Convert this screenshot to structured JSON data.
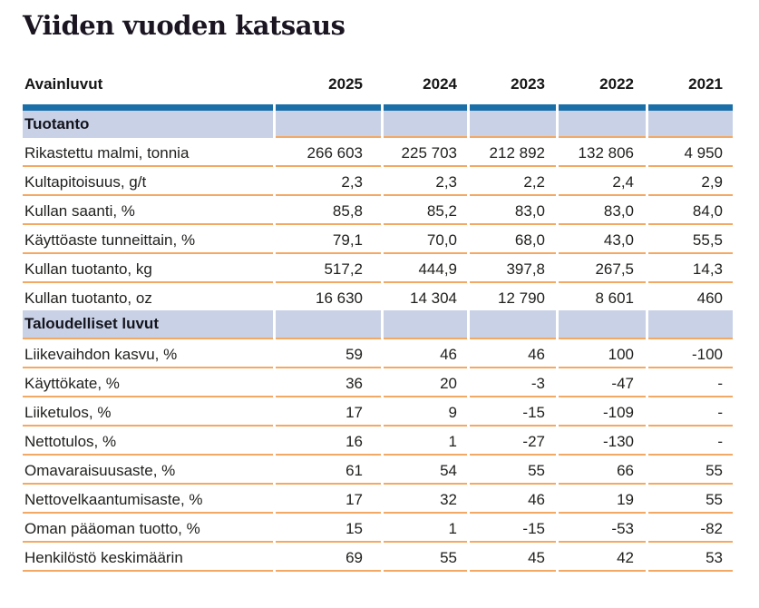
{
  "page": {
    "title": "Viiden vuoden katsaus"
  },
  "colors": {
    "header_bar": "#1b6fa8",
    "section_bg": "#c8d1e6",
    "divider": "#f3a964",
    "title_color": "#1b1522",
    "text_color": "#21211f"
  },
  "table": {
    "header": {
      "label": "Avainluvut",
      "years": [
        "2025",
        "2024",
        "2023",
        "2022",
        "2021"
      ]
    },
    "sections": [
      {
        "title": "Tuotanto",
        "rows": [
          {
            "label": "Rikastettu malmi, tonnia",
            "values": [
              "266 603",
              "225 703",
              "212 892",
              "132 806",
              "4 950"
            ]
          },
          {
            "label": "Kultapitoisuus, g/t",
            "values": [
              "2,3",
              "2,3",
              "2,2",
              "2,4",
              "2,9"
            ]
          },
          {
            "label": "Kullan saanti, %",
            "values": [
              "85,8",
              "85,2",
              "83,0",
              "83,0",
              "84,0"
            ]
          },
          {
            "label": "Käyttöaste tunneittain, %",
            "values": [
              "79,1",
              "70,0",
              "68,0",
              "43,0",
              "55,5"
            ]
          },
          {
            "label": "Kullan tuotanto, kg",
            "values": [
              "517,2",
              "444,9",
              "397,8",
              "267,5",
              "14,3"
            ]
          },
          {
            "label": "Kullan tuotanto, oz",
            "values": [
              "16 630",
              "14 304",
              "12 790",
              "8 601",
              "460"
            ]
          }
        ]
      },
      {
        "title": "Taloudelliset luvut",
        "rows": [
          {
            "label": "Liikevaihdon kasvu, %",
            "values": [
              "59",
              "46",
              "46",
              "100",
              "-100"
            ]
          },
          {
            "label": "Käyttökate, %",
            "values": [
              "36",
              "20",
              "-3",
              "-47",
              "-"
            ]
          },
          {
            "label": "Liiketulos, %",
            "values": [
              "17",
              "9",
              "-15",
              "-109",
              "-"
            ]
          },
          {
            "label": "Nettotulos, %",
            "values": [
              "16",
              "1",
              "-27",
              "-130",
              "-"
            ]
          },
          {
            "label": "Omavaraisuusaste, %",
            "values": [
              "61",
              "54",
              "55",
              "66",
              "55"
            ]
          },
          {
            "label": "Nettovelkaantumisaste, %",
            "values": [
              "17",
              "32",
              "46",
              "19",
              "55"
            ]
          },
          {
            "label": "Oman pääoman tuotto, %",
            "values": [
              "15",
              "1",
              "-15",
              "-53",
              "-82"
            ]
          },
          {
            "label": "Henkilöstö keskimäärin",
            "values": [
              "69",
              "55",
              "45",
              "42",
              "53"
            ]
          }
        ]
      }
    ]
  }
}
